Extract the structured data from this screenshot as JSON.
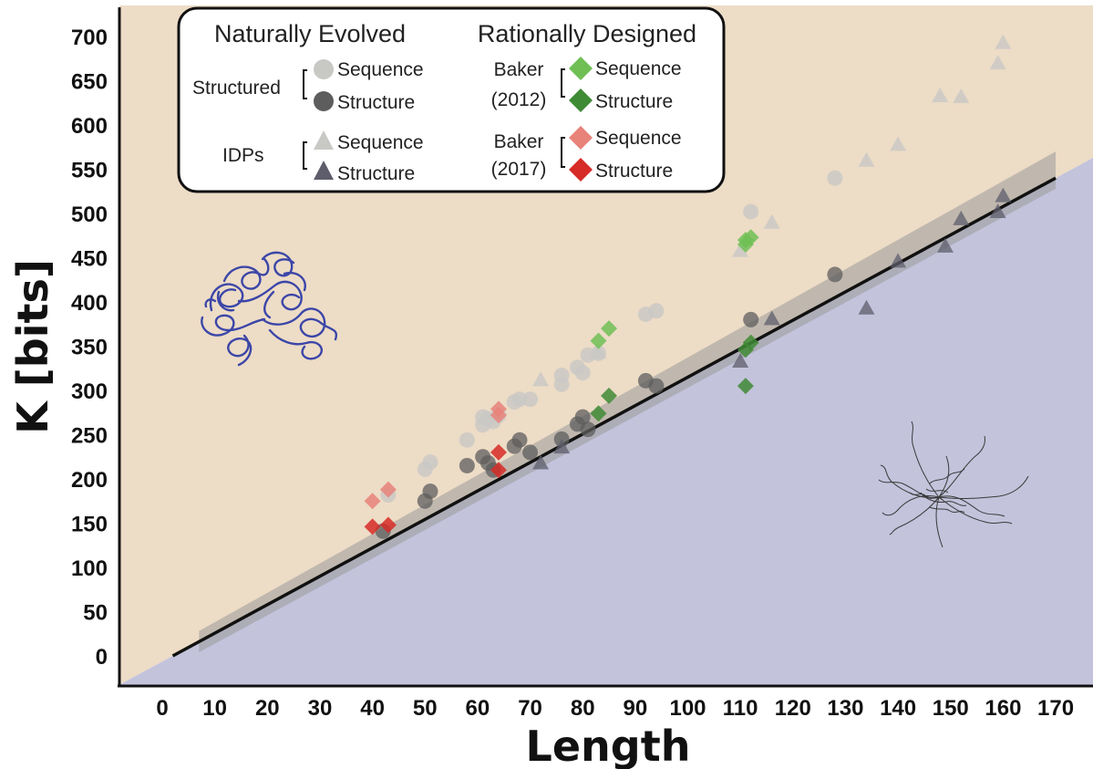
{
  "chart_data": {
    "type": "scatter",
    "title": "",
    "xlabel": "Length",
    "ylabel": "K [bits]",
    "xlim": [
      -8,
      177
    ],
    "ylim": [
      -30,
      735
    ],
    "xticks": [
      0,
      10,
      20,
      30,
      40,
      50,
      60,
      70,
      80,
      90,
      100,
      110,
      120,
      130,
      140,
      150,
      160,
      170
    ],
    "yticks": [
      0,
      50,
      100,
      150,
      200,
      250,
      300,
      350,
      400,
      450,
      500,
      550,
      600,
      650,
      700
    ],
    "grid": false,
    "legend": {
      "placement": "top-left",
      "groups": [
        {
          "heading": "Naturally Evolved",
          "subgroups": [
            {
              "label": "Structured",
              "entries": [
                "Sequence",
                "Structure"
              ]
            },
            {
              "label": "IDPs",
              "entries": [
                "Sequence",
                "Structure"
              ]
            }
          ]
        },
        {
          "heading": "Rationally Designed",
          "subgroups": [
            {
              "label": "Baker (2012)",
              "line1": "Baker",
              "line2": "(2012)",
              "entries": [
                "Sequence",
                "Structure"
              ]
            },
            {
              "label": "Baker (2017)",
              "line1": "Baker",
              "line2": "(2017)",
              "entries": [
                "Sequence",
                "Structure"
              ]
            }
          ]
        }
      ]
    },
    "colors": {
      "upper_region": "#eddcc6",
      "lower_region": "#c3c3dc",
      "band": "#9a9a9a",
      "line": "#111111",
      "structured_sequence": "#c8c8c4",
      "structured_structure": "#5d5d5d",
      "idp_sequence": "#c8c8c4",
      "idp_structure": "#5d5d6c",
      "baker2012_sequence": "#6fbf55",
      "baker2012_structure": "#3f8a35",
      "baker2017_sequence": "#e8837a",
      "baker2017_structure": "#d62b26"
    },
    "fit_line": {
      "x": [
        2,
        170
      ],
      "y": [
        0,
        540
      ]
    },
    "series": [
      {
        "group": "Structured",
        "kind": "Sequence",
        "marker": "circle",
        "color_key": "structured_sequence",
        "x": [
          43,
          50,
          51,
          58,
          61,
          61,
          62,
          63,
          64,
          67,
          68,
          70,
          76,
          76,
          79,
          80,
          81,
          83,
          92,
          94,
          112,
          128
        ],
        "y": [
          182,
          211,
          219,
          244,
          261,
          270,
          268,
          265,
          272,
          287,
          290,
          290,
          307,
          317,
          326,
          320,
          340,
          342,
          386,
          390,
          502,
          540
        ]
      },
      {
        "group": "Structured",
        "kind": "Structure",
        "marker": "circle",
        "color_key": "structured_structure",
        "x": [
          42,
          50,
          51,
          58,
          61,
          62,
          63,
          67,
          68,
          70,
          76,
          79,
          80,
          81,
          92,
          94,
          112,
          128
        ],
        "y": [
          141,
          175,
          186,
          215,
          225,
          218,
          210,
          237,
          244,
          230,
          245,
          262,
          270,
          256,
          311,
          305,
          380,
          431
        ]
      },
      {
        "group": "IDPs",
        "kind": "Sequence",
        "marker": "triangle",
        "color_key": "idp_sequence",
        "x": [
          72,
          83,
          110,
          116,
          134,
          140,
          148,
          152,
          159,
          160
        ],
        "y": [
          312,
          343,
          458,
          490,
          560,
          578,
          633,
          632,
          670,
          693
        ]
      },
      {
        "group": "IDPs",
        "kind": "Structure",
        "marker": "triangle",
        "color_key": "idp_structure",
        "x": [
          72,
          76,
          110,
          116,
          134,
          140,
          149,
          152,
          159,
          160
        ],
        "y": [
          218,
          236,
          333,
          381,
          393,
          446,
          463,
          494,
          502,
          520
        ]
      },
      {
        "group": "Baker (2012)",
        "kind": "Sequence",
        "marker": "diamond",
        "color_key": "baker2012_sequence",
        "x": [
          83,
          85,
          111,
          112,
          111
        ],
        "y": [
          356,
          370,
          465,
          473,
          470
        ]
      },
      {
        "group": "Baker (2012)",
        "kind": "Structure",
        "marker": "diamond",
        "color_key": "baker2012_structure",
        "x": [
          83,
          85,
          111,
          112,
          111
        ],
        "y": [
          274,
          294,
          346,
          354,
          305
        ]
      },
      {
        "group": "Baker (2017)",
        "kind": "Sequence",
        "marker": "diamond",
        "color_key": "baker2017_sequence",
        "x": [
          40,
          43,
          64,
          64
        ],
        "y": [
          175,
          188,
          272,
          279
        ]
      },
      {
        "group": "Baker (2017)",
        "kind": "Structure",
        "marker": "diamond",
        "color_key": "baker2017_structure",
        "x": [
          40,
          43,
          64,
          64
        ],
        "y": [
          146,
          148,
          210,
          230
        ]
      }
    ]
  },
  "illustrations": {
    "structured_protein": "folded-protein-ribbon",
    "disordered_protein": "disordered-protein-ensemble"
  }
}
